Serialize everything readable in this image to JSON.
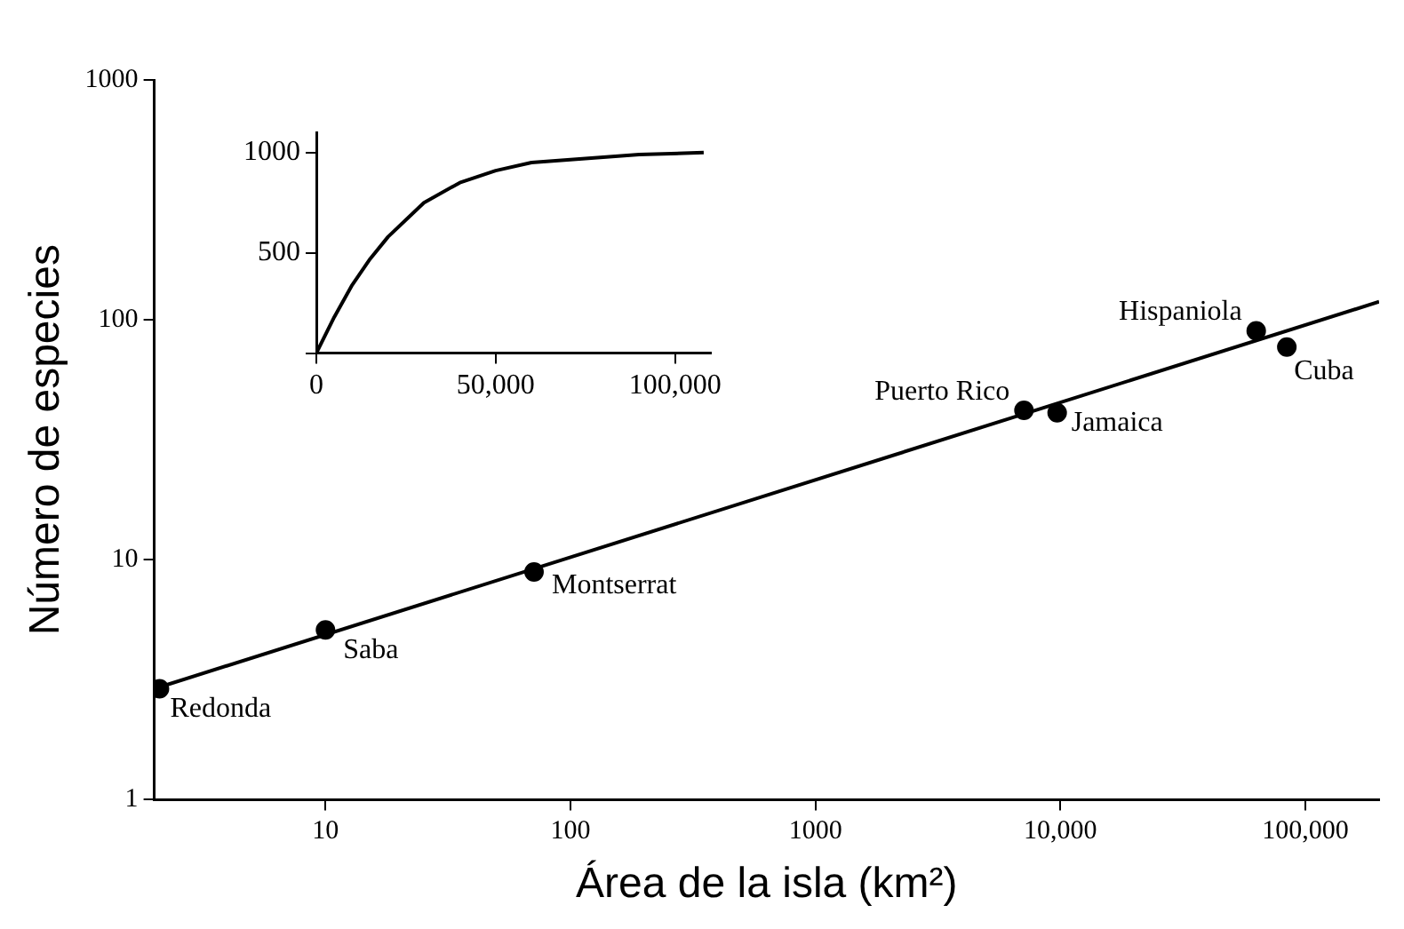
{
  "chart_data": [
    {
      "type": "scatter",
      "xlabel": "Área de la isla (km²)",
      "ylabel": "Número de especies",
      "log": "xy",
      "grid": false,
      "legend": false,
      "xlim": [
        2,
        200000
      ],
      "ylim": [
        1,
        1000
      ],
      "xticks": [
        10,
        100,
        1000,
        {
          "value": 10000,
          "label": "10,000"
        },
        {
          "value": 100000,
          "label": "100,000"
        }
      ],
      "yticks": [
        1,
        10,
        100,
        1000
      ],
      "series": [
        {
          "type": "scatter",
          "marker": "circle",
          "color": "#000000",
          "x": [
            2.1,
            10,
            71,
            7100,
            9700,
            63000,
            84000
          ],
          "values": [
            2.9,
            5.1,
            8.9,
            42,
            41,
            90,
            77
          ]
        },
        {
          "type": "line",
          "marker": "none",
          "line_style": "solid",
          "color": "#000000",
          "x": [
            2,
            200000
          ],
          "values": [
            2.9,
            119
          ]
        }
      ],
      "annotations": [
        {
          "text": "Redonda",
          "x": 2.1,
          "y": 2.9
        },
        {
          "text": "Saba",
          "x": 10,
          "y": 5.1
        },
        {
          "text": "Montserrat",
          "x": 71,
          "y": 8.9
        },
        {
          "text": "Puerto Rico",
          "x": 7100,
          "y": 42
        },
        {
          "text": "Jamaica",
          "x": 9700,
          "y": 41
        },
        {
          "text": "Hispaniola",
          "x": 63000,
          "y": 90
        },
        {
          "text": "Cuba",
          "x": 84000,
          "y": 77
        }
      ]
    },
    {
      "type": "line",
      "grid": false,
      "legend": false,
      "xlim": [
        0,
        110000
      ],
      "ylim": [
        0,
        1100
      ],
      "xticks": [
        0,
        {
          "value": 50000,
          "label": "50,000"
        },
        {
          "value": 100000,
          "label": "100,000"
        }
      ],
      "yticks": [
        {
          "value": 0,
          "label": null
        },
        500,
        1000
      ],
      "series": [
        {
          "marker": "none",
          "line_style": "solid",
          "color": "#000000",
          "x": [
            0,
            5000,
            10000,
            15000,
            20000,
            30000,
            40000,
            50000,
            60000,
            75000,
            90000,
            108000
          ],
          "values": [
            0,
            180,
            340,
            470,
            580,
            750,
            850,
            910,
            950,
            970,
            990,
            1000
          ]
        }
      ]
    }
  ]
}
